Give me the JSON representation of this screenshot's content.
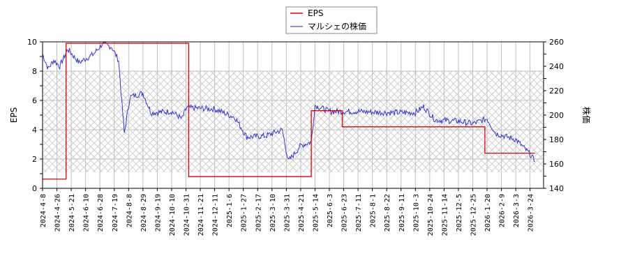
{
  "chart_data": {
    "type": "line",
    "title": "",
    "legend": {
      "position": "top-center",
      "entries": [
        {
          "label": "EPS",
          "color": "#dd0000"
        },
        {
          "label": "マルシェの株価",
          "color": "#3333dd"
        }
      ]
    },
    "left_axis": {
      "label": "EPS",
      "ylim": [
        0,
        10
      ],
      "ticks": [
        "0",
        "2",
        "4",
        "6",
        "8",
        "10"
      ]
    },
    "right_axis": {
      "label": "株価",
      "ylim": [
        140,
        260
      ],
      "ticks": [
        "140",
        "160",
        "180",
        "200",
        "220",
        "240",
        "260"
      ]
    },
    "xlabel": "",
    "x_tick_labels": [
      "2024-4-8",
      "2024-4-26",
      "2024-5-21",
      "2024-6-10",
      "2024-6-28",
      "2024-7-19",
      "2024-8-8",
      "2024-8-29",
      "2024-9-19",
      "2024-10-10",
      "2024-10-31",
      "2024-11-21",
      "2024-12-11",
      "2025-1-6",
      "2025-1-27",
      "2025-2-17",
      "2025-3-10",
      "2025-3-31",
      "2025-4-21",
      "2025-5-14",
      "2025-6-3",
      "2025-6-23",
      "2025-7-11",
      "2025-8-1",
      "2025-8-22",
      "2025-9-11",
      "2025-10-3",
      "2025-10-24",
      "2025-11-14",
      "2025-12-5",
      "2025-12-25",
      "2026-1-20",
      "2026-2-9",
      "2026-3-3",
      "2026-3-24"
    ],
    "grid": true,
    "hatched_band": {
      "eps_from": 1.1,
      "eps_to": 8.0
    },
    "series": [
      {
        "name": "EPS",
        "axis": "left",
        "step": true,
        "points": [
          {
            "x": "2024-4-8",
            "y": 0.63
          },
          {
            "x": "2024-5-10",
            "y": 0.63
          },
          {
            "x": "2024-5-12",
            "y": 9.9
          },
          {
            "x": "2024-11-1",
            "y": 9.9
          },
          {
            "x": "2024-11-4",
            "y": 0.8
          },
          {
            "x": "2025-5-7",
            "y": 0.8
          },
          {
            "x": "2025-5-8",
            "y": 5.3
          },
          {
            "x": "2025-6-20",
            "y": 5.3
          },
          {
            "x": "2025-6-21",
            "y": 4.2
          },
          {
            "x": "2026-1-14",
            "y": 4.2
          },
          {
            "x": "2026-1-16",
            "y": 2.4
          },
          {
            "x": "2026-3-31",
            "y": 2.4
          }
        ]
      },
      {
        "name": "マルシェの株価",
        "axis": "right",
        "points_approx": [
          {
            "x": "2024-4-8",
            "y": 250
          },
          {
            "x": "2024-4-15",
            "y": 238
          },
          {
            "x": "2024-4-22",
            "y": 245
          },
          {
            "x": "2024-5-1",
            "y": 240
          },
          {
            "x": "2024-5-15",
            "y": 254
          },
          {
            "x": "2024-6-1",
            "y": 243
          },
          {
            "x": "2024-6-20",
            "y": 250
          },
          {
            "x": "2024-7-1",
            "y": 258
          },
          {
            "x": "2024-7-15",
            "y": 256
          },
          {
            "x": "2024-7-25",
            "y": 245
          },
          {
            "x": "2024-8-2",
            "y": 185
          },
          {
            "x": "2024-8-10",
            "y": 215
          },
          {
            "x": "2024-8-29",
            "y": 218
          },
          {
            "x": "2024-9-10",
            "y": 202
          },
          {
            "x": "2024-10-10",
            "y": 203
          },
          {
            "x": "2024-10-25",
            "y": 197
          },
          {
            "x": "2024-11-1",
            "y": 206
          },
          {
            "x": "2024-12-11",
            "y": 205
          },
          {
            "x": "2025-1-15",
            "y": 198
          },
          {
            "x": "2025-2-1",
            "y": 182
          },
          {
            "x": "2025-3-1",
            "y": 183
          },
          {
            "x": "2025-3-25",
            "y": 188
          },
          {
            "x": "2025-4-3",
            "y": 162
          },
          {
            "x": "2025-4-21",
            "y": 175
          },
          {
            "x": "2025-5-8",
            "y": 178
          },
          {
            "x": "2025-5-14",
            "y": 208
          },
          {
            "x": "2025-6-3",
            "y": 203
          },
          {
            "x": "2025-7-11",
            "y": 203
          },
          {
            "x": "2025-8-22",
            "y": 202
          },
          {
            "x": "2025-10-3",
            "y": 202
          },
          {
            "x": "2025-10-15",
            "y": 207
          },
          {
            "x": "2025-11-1",
            "y": 196
          },
          {
            "x": "2025-12-5",
            "y": 195
          },
          {
            "x": "2025-12-25",
            "y": 193
          },
          {
            "x": "2026-1-20",
            "y": 197
          },
          {
            "x": "2026-2-1",
            "y": 185
          },
          {
            "x": "2026-3-3",
            "y": 180
          },
          {
            "x": "2026-3-24",
            "y": 168
          },
          {
            "x": "2026-3-31",
            "y": 162
          }
        ]
      }
    ]
  }
}
